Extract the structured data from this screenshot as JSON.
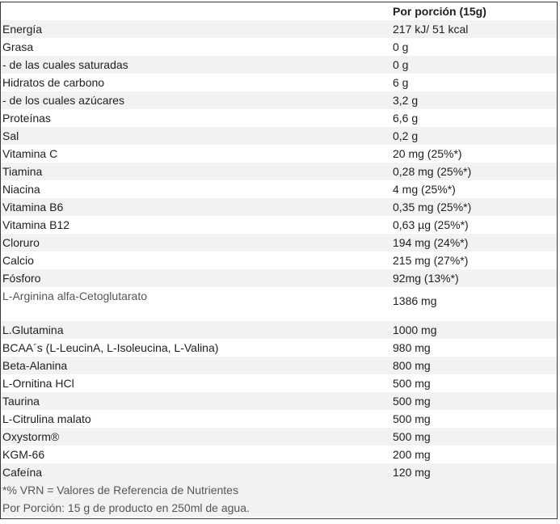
{
  "header": {
    "label": "",
    "value": "Por porción (15g)"
  },
  "rows": [
    {
      "label": "Energía",
      "value": "217 kJ/ 51 kcal"
    },
    {
      "label": "Grasa",
      "value": "0 g"
    },
    {
      "label": "- de las cuales saturadas",
      "value": "0 g"
    },
    {
      "label": "Hidratos de carbono",
      "value": "6 g"
    },
    {
      "label": "- de los cuales azúcares",
      "value": "3,2 g"
    },
    {
      "label": "Proteínas",
      "value": "6,6 g"
    },
    {
      "label": "Sal",
      "value": "0,2 g"
    },
    {
      "label": "Vitamina C",
      "value": "20 mg (25%*)"
    },
    {
      "label": "Tiamina",
      "value": "0,28 mg (25%*)"
    },
    {
      "label": "Niacina",
      "value": "4 mg (25%*)"
    },
    {
      "label": "Vitamina B6",
      "value": "0,35 mg (25%*)"
    },
    {
      "label": "Vitamina B12",
      "value": "0,63 µg (25%*)"
    },
    {
      "label": "Cloruro",
      "value": "194 mg (24%*)"
    },
    {
      "label": "Calcio",
      "value": "215 mg (27%*)"
    },
    {
      "label": "Fósforo",
      "value": "92mg (13%*)"
    },
    {
      "label": "L-Arginina alfa-Cetoglutarato",
      "value": "1386 mg"
    },
    {
      "label": "L.Glutamina",
      "value": "1000 mg"
    },
    {
      "label": "BCAA´s (L-LeucinA, L-Isoleucina, L-Valina)",
      "value": "980 mg"
    },
    {
      "label": "Beta-Alanina",
      "value": "800 mg"
    },
    {
      "label": "L-Ornitina HCl",
      "value": "500 mg"
    },
    {
      "label": "Taurina",
      "value": "500 mg"
    },
    {
      "label": "L-Citrulina malato",
      "value": "500 mg"
    },
    {
      "label": "Oxystorm®",
      "value": "500 mg"
    },
    {
      "label": "KGM-66",
      "value": "200 mg"
    },
    {
      "label": "Cafeína",
      "value": "120 mg"
    }
  ],
  "footnotes": [
    "*%  VRN = Valores de Referencia de Nutrientes",
    "Por Porción: 15 g de producto en 250ml de agua."
  ]
}
